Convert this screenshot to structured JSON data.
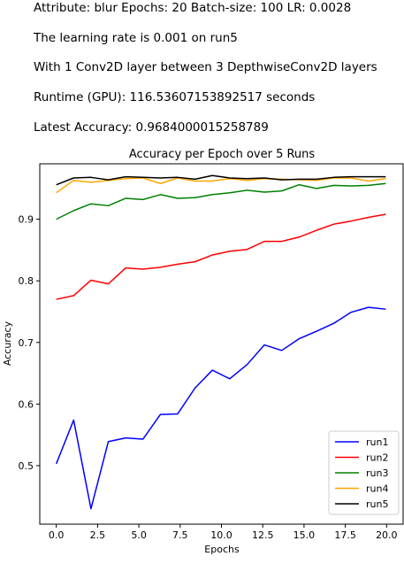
{
  "info": {
    "line1": "Attribute: blur   Epochs: 20    Batch-size: 100    LR: 0.0028",
    "line2": "The learning rate is 0.001 on run5",
    "line3": "With 1 Conv2D layer between 3 DepthwiseConv2D layers",
    "line4": "Runtime (GPU): 116.53607153892517 seconds",
    "line5": "Latest Accuracy: 0.9684000015258789"
  },
  "chart_data": {
    "type": "line",
    "title": "Accuracy per Epoch over 5 Runs",
    "xlabel": "Epochs",
    "ylabel": "Accuracy",
    "xlim": [
      -1.0,
      21.0
    ],
    "ylim": [
      0.405,
      0.99
    ],
    "xticks": [
      0.0,
      2.5,
      5.0,
      7.5,
      10.0,
      12.5,
      15.0,
      17.5,
      20.0
    ],
    "xtick_labels": [
      "0.0",
      "2.5",
      "5.0",
      "7.5",
      "10.0",
      "12.5",
      "15.0",
      "17.5",
      "20.0"
    ],
    "yticks": [
      0.5,
      0.6,
      0.7,
      0.8,
      0.9
    ],
    "ytick_labels": [
      "0.5",
      "0.6",
      "0.7",
      "0.8",
      "0.9"
    ],
    "grid": false,
    "legend_position": "lower-right",
    "x": [
      0,
      1.05,
      2.1,
      3.15,
      4.2,
      5.25,
      6.3,
      7.35,
      8.4,
      9.45,
      10.5,
      11.55,
      12.6,
      13.65,
      14.7,
      15.75,
      16.8,
      17.85,
      18.9,
      19.95
    ],
    "series": [
      {
        "name": "run1",
        "color": "#0000ff",
        "values": [
          0.503,
          0.574,
          0.43,
          0.539,
          0.545,
          0.543,
          0.583,
          0.584,
          0.626,
          0.655,
          0.641,
          0.664,
          0.696,
          0.687,
          0.706,
          0.718,
          0.731,
          0.749,
          0.757,
          0.754
        ]
      },
      {
        "name": "run2",
        "color": "#ff0000",
        "values": [
          0.77,
          0.776,
          0.801,
          0.795,
          0.821,
          0.819,
          0.822,
          0.827,
          0.831,
          0.842,
          0.848,
          0.851,
          0.864,
          0.864,
          0.871,
          0.882,
          0.892,
          0.897,
          0.903,
          0.908
        ]
      },
      {
        "name": "run3",
        "color": "#008000",
        "values": [
          0.9,
          0.914,
          0.925,
          0.922,
          0.934,
          0.932,
          0.94,
          0.934,
          0.935,
          0.94,
          0.943,
          0.947,
          0.944,
          0.946,
          0.956,
          0.95,
          0.955,
          0.954,
          0.955,
          0.958
        ]
      },
      {
        "name": "run4",
        "color": "#ffa500",
        "values": [
          0.943,
          0.963,
          0.96,
          0.963,
          0.966,
          0.967,
          0.958,
          0.967,
          0.962,
          0.962,
          0.966,
          0.963,
          0.966,
          0.965,
          0.964,
          0.963,
          0.967,
          0.967,
          0.962,
          0.966
        ]
      },
      {
        "name": "run5",
        "color": "#000000",
        "values": [
          0.956,
          0.967,
          0.968,
          0.964,
          0.969,
          0.968,
          0.967,
          0.968,
          0.965,
          0.971,
          0.967,
          0.966,
          0.967,
          0.964,
          0.965,
          0.965,
          0.968,
          0.969,
          0.969,
          0.969
        ]
      }
    ]
  }
}
